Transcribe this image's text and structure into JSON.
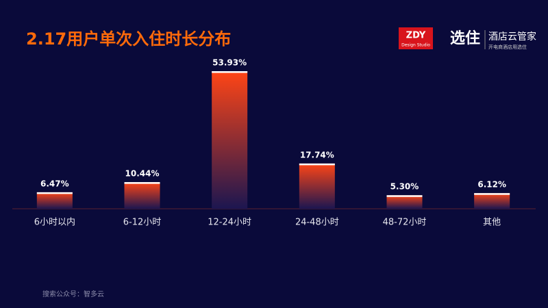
{
  "chart_data": {
    "type": "bar",
    "title": "2.17用户单次入住时长分布",
    "categories": [
      "6小时以内",
      "6-12小时",
      "12-24小时",
      "24-48小时",
      "48-72小时",
      "其他"
    ],
    "values": [
      6.47,
      10.44,
      53.93,
      17.74,
      5.3,
      6.12
    ],
    "value_labels": [
      "6.47%",
      "10.44%",
      "53.93%",
      "17.74%",
      "5.30%",
      "6.12%"
    ],
    "color": "#ff4516"
  },
  "logos": {
    "zdy": "ZDY",
    "zdy_sub": "Design Studio",
    "brand": "选住",
    "brand_name": "酒店云管家",
    "brand_tagline": "开电商酒店用选住"
  },
  "footer": "搜索公众号：智多云"
}
